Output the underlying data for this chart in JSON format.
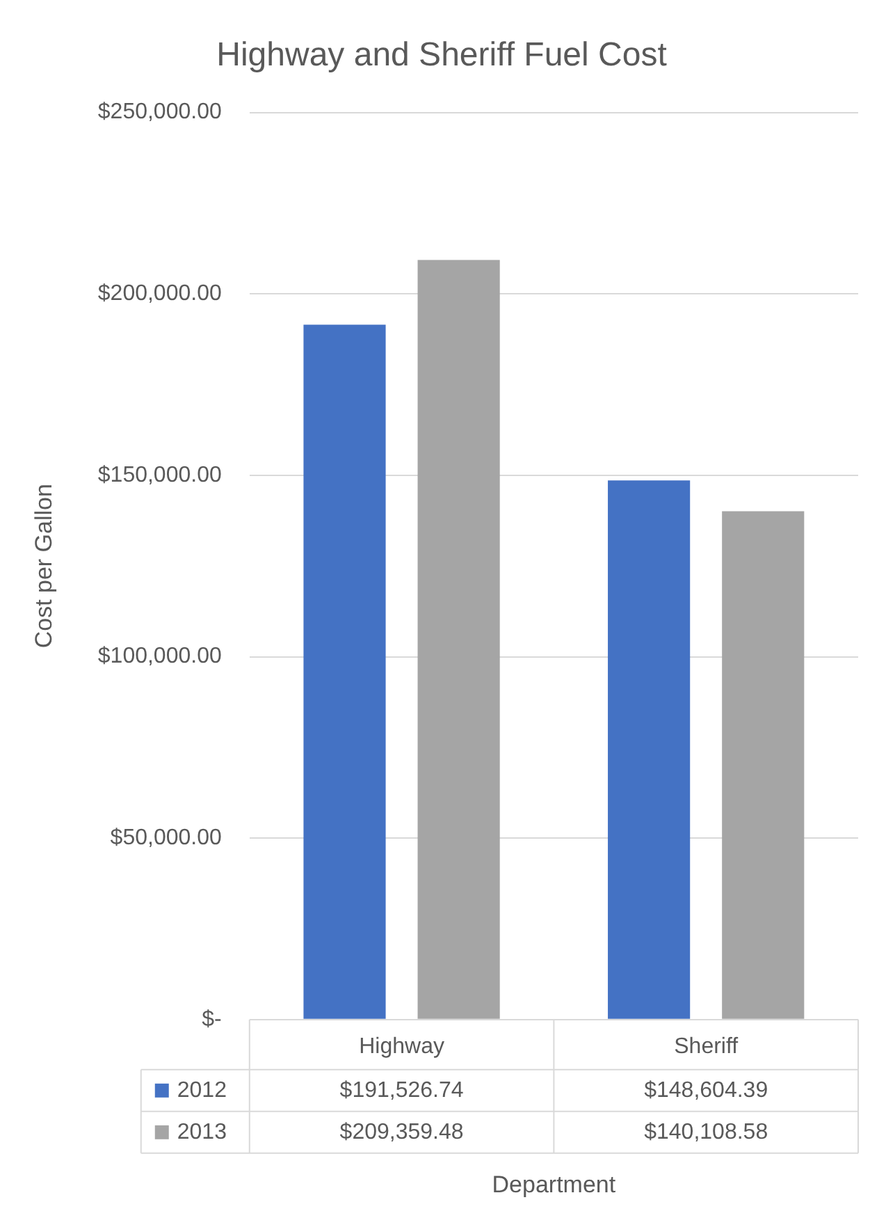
{
  "chart_data": {
    "type": "bar",
    "title": "Highway and Sheriff Fuel Cost",
    "xlabel": "Department",
    "ylabel": "Cost per Gallon",
    "categories": [
      "Highway",
      "Sheriff"
    ],
    "series": [
      {
        "name": "2012",
        "color": "#4472c4",
        "values": [
          191526.74,
          148604.39
        ],
        "value_labels": [
          "$191,526.74",
          "$148,604.39"
        ]
      },
      {
        "name": "2013",
        "color": "#a5a5a5",
        "values": [
          209359.48,
          140108.58
        ],
        "value_labels": [
          "$209,359.48",
          "$140,108.58"
        ]
      }
    ],
    "ylim": [
      0,
      250000
    ],
    "yticks": [
      {
        "value": 0,
        "label": "$-"
      },
      {
        "value": 50000,
        "label": "$50,000.00"
      },
      {
        "value": 100000,
        "label": "$100,000.00"
      },
      {
        "value": 150000,
        "label": "$150,000.00"
      },
      {
        "value": 200000,
        "label": "$200,000.00"
      },
      {
        "value": 250000,
        "label": "$250,000.00"
      }
    ],
    "grid": "y",
    "legend": "bottom"
  }
}
